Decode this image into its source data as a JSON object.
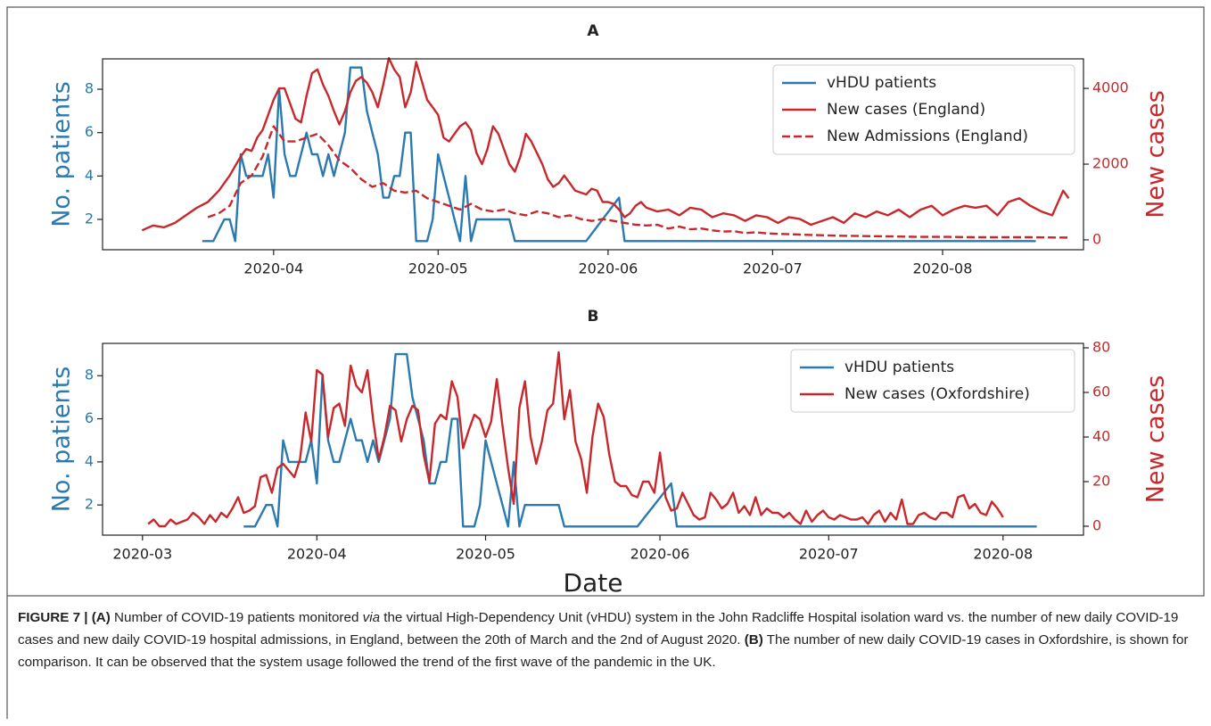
{
  "chart_data": [
    {
      "type": "line",
      "title": "A",
      "ylabel": "No. patients",
      "y2label": "New cases",
      "legend": "upper right",
      "xlim": [
        60.8,
        239.7
      ],
      "xticks": [
        {
          "value": 92,
          "label": "2020-04"
        },
        {
          "value": 122,
          "label": "2020-05"
        },
        {
          "value": 153,
          "label": "2020-06"
        },
        {
          "value": 183,
          "label": "2020-07"
        },
        {
          "value": 214,
          "label": "2020-08"
        }
      ],
      "ylim": [
        0.6,
        9.4
      ],
      "yticks": [
        2,
        4,
        6,
        8
      ],
      "y2lim": [
        -260,
        4780
      ],
      "y2ticks": [
        0,
        2000,
        4000
      ],
      "series": [
        {
          "name": "vHDU patients",
          "color": "#2a7ab0",
          "linestyle": "solid",
          "x": [
            79,
            81,
            83,
            84,
            85,
            86,
            87,
            88,
            89,
            90,
            91,
            92,
            93,
            94,
            95,
            96,
            97,
            98,
            99,
            100,
            101,
            102,
            103,
            104,
            105,
            106,
            108,
            109,
            110,
            111,
            112,
            113,
            114,
            115,
            116,
            117,
            118,
            119,
            120,
            121,
            122,
            123,
            124,
            125,
            126,
            127,
            128,
            129,
            135,
            136,
            149,
            155,
            156,
            231
          ],
          "values": [
            1,
            1,
            2,
            2,
            1,
            5,
            4,
            4,
            4,
            4,
            5,
            3,
            8,
            5,
            4,
            4,
            5,
            6,
            5,
            5,
            4,
            5,
            4,
            5,
            6,
            9,
            9,
            7,
            6,
            5,
            3,
            3,
            4,
            4,
            6,
            6,
            1,
            1,
            1,
            2,
            5,
            4,
            3,
            2,
            1,
            4,
            1,
            2,
            2,
            1,
            1,
            3,
            1,
            1
          ]
        },
        {
          "name": "New cases (England)",
          "color": "#c8282b",
          "linestyle": "solid",
          "axis": "y2",
          "x": [
            68,
            70,
            72,
            74,
            76,
            78,
            80,
            82,
            84,
            86,
            87,
            88,
            89,
            90,
            91,
            92,
            93,
            94,
            95,
            96,
            97,
            98,
            99,
            100,
            101,
            102,
            103,
            104,
            105,
            106,
            107,
            108,
            109,
            110,
            111,
            112,
            113,
            114,
            115,
            116,
            117,
            118,
            119,
            120,
            121,
            122,
            123,
            124,
            125,
            126,
            127,
            128,
            129,
            130,
            131,
            132,
            133,
            134,
            135,
            136,
            137,
            138,
            139,
            140,
            141,
            142,
            143,
            144,
            145,
            146,
            147,
            148,
            149,
            150,
            151,
            152,
            153,
            154,
            155,
            156,
            157,
            158,
            159,
            160,
            162,
            164,
            166,
            168,
            170,
            172,
            174,
            176,
            178,
            180,
            182,
            184,
            186,
            188,
            190,
            192,
            194,
            196,
            198,
            200,
            202,
            204,
            206,
            208,
            210,
            212,
            214,
            216,
            218,
            220,
            222,
            224,
            226,
            228,
            230,
            232,
            234,
            236,
            237
          ],
          "values": [
            250,
            380,
            330,
            450,
            650,
            850,
            1000,
            1300,
            1700,
            2200,
            2400,
            2350,
            2700,
            2900,
            3300,
            3700,
            4000,
            4000,
            3600,
            3200,
            3100,
            3800,
            4400,
            4500,
            4100,
            3800,
            3400,
            3050,
            3400,
            3900,
            4200,
            4300,
            4150,
            3900,
            3500,
            4100,
            4800,
            4500,
            4300,
            3500,
            3900,
            4700,
            4200,
            3700,
            3500,
            3300,
            2700,
            2600,
            2800,
            3000,
            3100,
            2900,
            2300,
            2000,
            2400,
            3000,
            2800,
            2400,
            2000,
            1800,
            2200,
            2800,
            2600,
            2300,
            2000,
            1600,
            1400,
            1500,
            1700,
            1500,
            1300,
            1250,
            1200,
            1350,
            1300,
            1000,
            1000,
            950,
            800,
            600,
            700,
            900,
            1000,
            850,
            750,
            800,
            650,
            850,
            800,
            600,
            700,
            650,
            500,
            650,
            600,
            450,
            600,
            550,
            400,
            500,
            600,
            450,
            700,
            600,
            750,
            650,
            800,
            600,
            800,
            900,
            650,
            800,
            900,
            850,
            900,
            650,
            1000,
            1100,
            900,
            750,
            650,
            1300,
            1100
          ]
        },
        {
          "name": "New Admissions (England)",
          "color": "#c8282b",
          "linestyle": "dashed",
          "axis": "y2",
          "x": [
            80,
            82,
            84,
            86,
            88,
            90,
            92,
            94,
            96,
            98,
            100,
            102,
            104,
            106,
            108,
            110,
            112,
            114,
            116,
            118,
            120,
            122,
            124,
            126,
            128,
            130,
            132,
            134,
            136,
            138,
            140,
            142,
            144,
            146,
            148,
            150,
            152,
            154,
            156,
            158,
            160,
            162,
            164,
            166,
            168,
            170,
            172,
            174,
            176,
            178,
            180,
            182,
            184,
            186,
            188,
            190,
            195,
            200,
            205,
            210,
            215,
            220,
            225,
            230,
            237
          ],
          "values": [
            600,
            700,
            900,
            1500,
            1700,
            2200,
            3000,
            2600,
            2600,
            2700,
            2800,
            2500,
            2100,
            1900,
            1600,
            1400,
            1500,
            1300,
            1250,
            1300,
            1100,
            1000,
            900,
            800,
            950,
            800,
            750,
            800,
            700,
            650,
            750,
            700,
            600,
            650,
            550,
            500,
            550,
            500,
            450,
            400,
            380,
            400,
            300,
            350,
            280,
            300,
            250,
            220,
            230,
            180,
            200,
            170,
            160,
            150,
            140,
            130,
            110,
            100,
            90,
            80,
            80,
            70,
            70,
            70,
            60
          ]
        }
      ]
    },
    {
      "type": "line",
      "title": "B",
      "xlabel": "Date",
      "ylabel": "No. patients",
      "y2label": "New cases",
      "legend": "upper right",
      "xlim": [
        53.9,
        228.3
      ],
      "xticks": [
        {
          "value": 61,
          "label": "2020-03"
        },
        {
          "value": 92,
          "label": "2020-04"
        },
        {
          "value": 122,
          "label": "2020-05"
        },
        {
          "value": 153,
          "label": "2020-06"
        },
        {
          "value": 183,
          "label": "2020-07"
        },
        {
          "value": 214,
          "label": "2020-08"
        }
      ],
      "ylim": [
        0.6,
        9.5
      ],
      "yticks": [
        2,
        4,
        6,
        8
      ],
      "y2lim": [
        -4,
        82
      ],
      "y2ticks": [
        0,
        20,
        40,
        60,
        80
      ],
      "series": [
        {
          "name": "vHDU patients",
          "color": "#2a7ab0",
          "linestyle": "solid",
          "x": [
            79,
            81,
            83,
            84,
            85,
            86,
            87,
            88,
            89,
            90,
            91,
            92,
            93,
            94,
            95,
            96,
            97,
            98,
            99,
            100,
            101,
            102,
            103,
            104,
            105,
            106,
            108,
            109,
            110,
            111,
            112,
            113,
            114,
            115,
            116,
            117,
            118,
            119,
            120,
            121,
            122,
            123,
            124,
            125,
            126,
            127,
            128,
            129,
            135,
            136,
            149,
            155,
            156,
            220
          ],
          "values": [
            1,
            1,
            2,
            2,
            1,
            5,
            4,
            4,
            4,
            4,
            5,
            3,
            8,
            5,
            4,
            4,
            5,
            6,
            5,
            5,
            4,
            5,
            4,
            5,
            6,
            9,
            9,
            7,
            6,
            5,
            3,
            3,
            4,
            4,
            6,
            6,
            1,
            1,
            1,
            2,
            5,
            4,
            3,
            2,
            1,
            4,
            1,
            2,
            2,
            1,
            1,
            3,
            1,
            1
          ]
        },
        {
          "name": "New cases (Oxfordshire)",
          "color": "#c8282b",
          "linestyle": "solid",
          "axis": "y2",
          "x": [
            62,
            63,
            64,
            65,
            66,
            67,
            68,
            69,
            70,
            71,
            72,
            73,
            74,
            75,
            76,
            77,
            78,
            79,
            80,
            81,
            82,
            83,
            84,
            85,
            86,
            87,
            88,
            89,
            90,
            91,
            92,
            93,
            94,
            95,
            96,
            97,
            98,
            99,
            100,
            101,
            102,
            103,
            104,
            105,
            106,
            107,
            108,
            109,
            110,
            111,
            112,
            113,
            114,
            115,
            116,
            117,
            118,
            119,
            120,
            121,
            122,
            123,
            124,
            125,
            126,
            127,
            128,
            129,
            130,
            131,
            132,
            133,
            134,
            135,
            136,
            137,
            138,
            139,
            140,
            141,
            142,
            143,
            144,
            145,
            146,
            147,
            148,
            149,
            150,
            151,
            152,
            153,
            154,
            155,
            156,
            157,
            158,
            159,
            160,
            161,
            162,
            163,
            164,
            165,
            166,
            167,
            168,
            169,
            170,
            171,
            172,
            173,
            174,
            175,
            176,
            177,
            178,
            179,
            180,
            181,
            182,
            183,
            184,
            185,
            186,
            187,
            188,
            189,
            190,
            191,
            192,
            193,
            194,
            195,
            196,
            197,
            198,
            199,
            200,
            201,
            202,
            203,
            204,
            205,
            206,
            207,
            208,
            209,
            210,
            211,
            212,
            213,
            214
          ],
          "values": [
            1,
            3,
            0,
            0,
            3,
            1,
            2,
            3,
            6,
            4,
            1,
            5,
            2,
            6,
            4,
            8,
            13,
            6,
            7,
            9,
            22,
            23,
            15,
            26,
            28,
            25,
            22,
            30,
            51,
            38,
            70,
            68,
            40,
            53,
            55,
            45,
            72,
            63,
            60,
            70,
            48,
            30,
            40,
            54,
            52,
            38,
            48,
            54,
            52,
            32,
            20,
            46,
            50,
            48,
            65,
            58,
            35,
            43,
            50,
            48,
            40,
            47,
            66,
            45,
            26,
            10,
            53,
            65,
            40,
            28,
            38,
            52,
            55,
            78,
            48,
            61,
            38,
            30,
            15,
            40,
            55,
            49,
            32,
            20,
            18,
            18,
            14,
            13,
            20,
            20,
            15,
            33,
            13,
            7,
            8,
            15,
            10,
            5,
            3,
            4,
            15,
            12,
            8,
            10,
            15,
            6,
            9,
            5,
            13,
            5,
            8,
            6,
            6,
            4,
            6,
            3,
            1,
            7,
            2,
            5,
            7,
            4,
            3,
            5,
            4,
            3,
            3,
            4,
            1,
            5,
            7,
            2,
            6,
            3,
            12,
            1,
            1,
            5,
            6,
            4,
            3,
            6,
            6,
            4,
            13,
            14,
            8,
            10,
            6,
            5,
            11,
            8,
            4
          ]
        }
      ]
    }
  ],
  "caption": {
    "parts": [
      "FIGURE 7 | (A)",
      " Number of COVID-19 patients monitored ",
      "via",
      " the virtual High-Dependency Unit (vHDU) system in the John Radcliffe Hospital isolation ward vs. the number of new daily COVID-19 cases and new daily COVID-19 hospital admissions, in England, between the 20th of March and the 2nd of August 2020. ",
      "(B)",
      " The number of new daily COVID-19 cases in Oxfordshire, is shown for comparison. It can be observed that the system usage followed the trend of the first wave of the pandemic in the UK."
    ]
  }
}
